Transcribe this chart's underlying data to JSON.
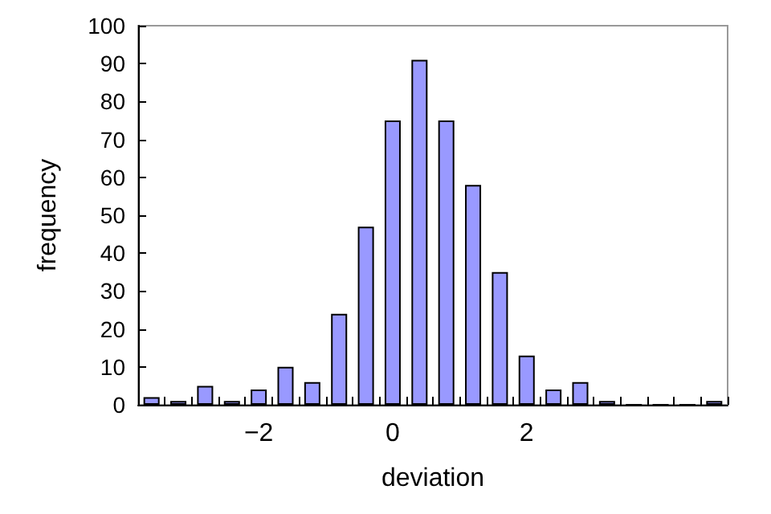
{
  "chart_data": {
    "type": "bar",
    "xlabel": "deviation",
    "ylabel": "frequency",
    "categories": [
      null,
      null,
      null,
      null,
      "−2",
      null,
      null,
      null,
      null,
      "0",
      null,
      null,
      null,
      null,
      "2",
      null,
      null,
      null,
      null,
      null,
      null,
      null
    ],
    "values": [
      2,
      1,
      5,
      1,
      4,
      10,
      6,
      24,
      47,
      75,
      91,
      75,
      58,
      35,
      13,
      4,
      6,
      1,
      0,
      0,
      0,
      1
    ],
    "color": "#9999ff",
    "ylim": [
      0,
      100
    ],
    "yticks": [
      0,
      10,
      20,
      30,
      40,
      50,
      60,
      70,
      80,
      90,
      100
    ],
    "grid": false
  }
}
